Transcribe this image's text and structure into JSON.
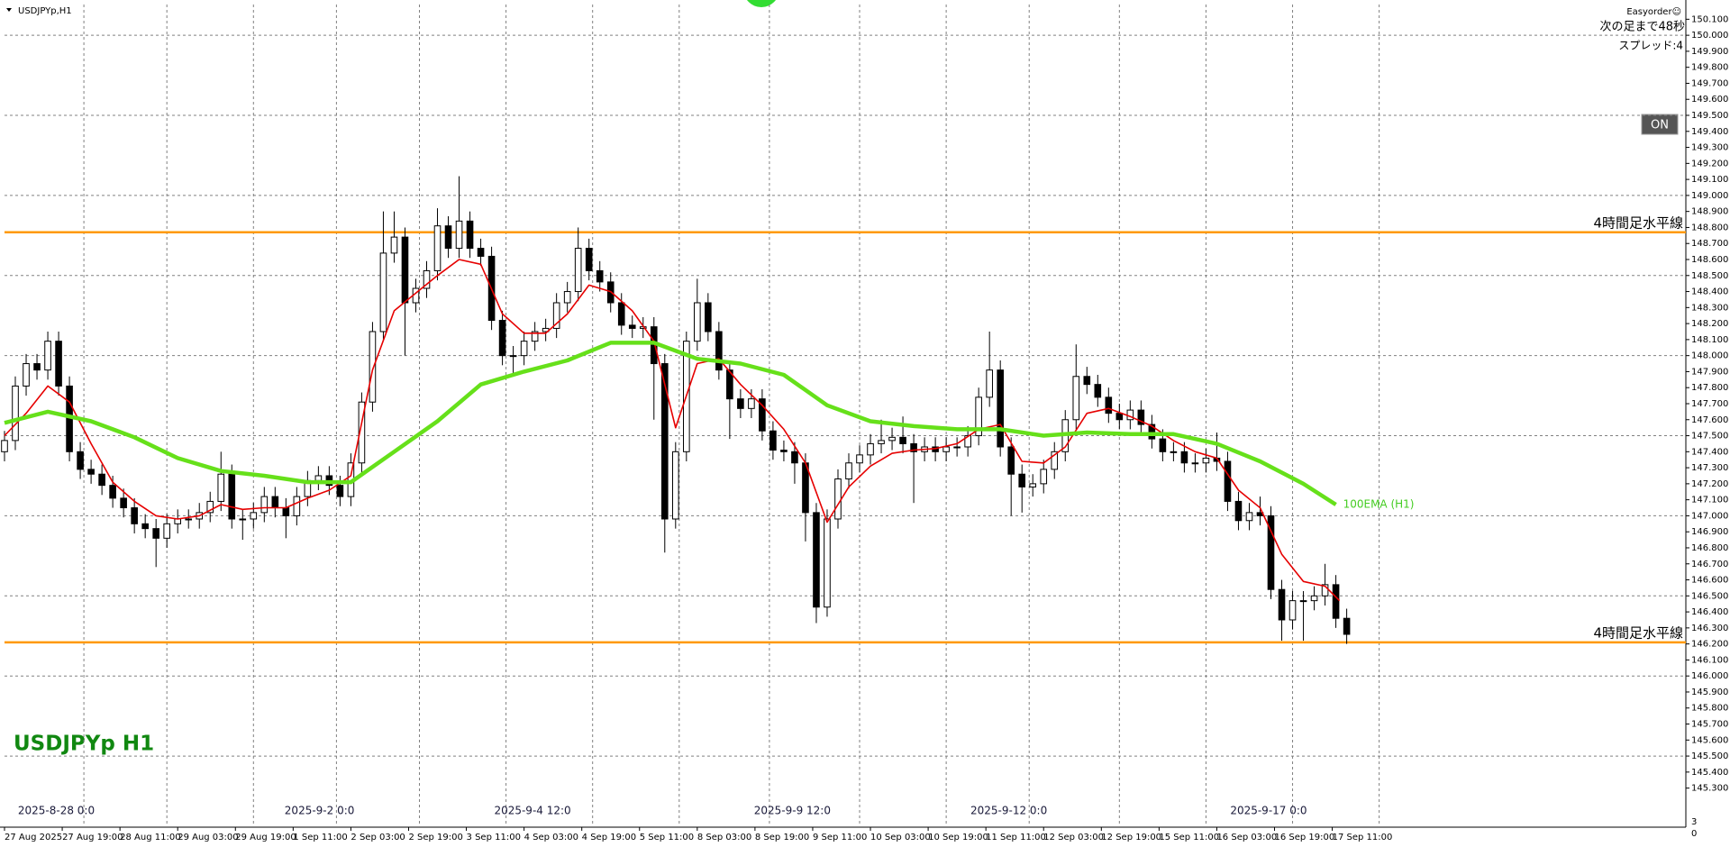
{
  "panel": {
    "easyorder": "Easyorder☺",
    "countdown": "次の足まで48秒",
    "spread": "スプレッド:4",
    "button": "ON",
    "scale_corner": [
      "3",
      "0"
    ]
  },
  "chart_data": {
    "type": "candlestick",
    "title": "USDJPYp,H1",
    "watermark": "USDJPYp H1",
    "xlim": [
      0,
      466
    ],
    "ylim": [
      145.056,
      150.192
    ],
    "grid": true,
    "up_color": "#ffffff",
    "down_color": "#000000",
    "x": [
      0,
      3,
      6,
      9,
      12,
      15,
      18,
      21,
      24,
      27,
      30,
      33,
      36,
      39,
      42,
      45,
      48,
      51,
      54,
      57,
      60,
      63,
      66,
      69,
      72,
      75,
      78,
      81,
      84,
      87,
      90,
      93,
      96,
      99,
      102,
      105,
      108,
      111,
      114,
      117,
      120,
      123,
      126,
      129,
      132,
      135,
      138,
      141,
      144,
      147,
      150,
      153,
      156,
      159,
      162,
      165,
      168,
      171,
      174,
      177,
      180,
      183,
      186,
      189,
      192,
      195,
      198,
      201,
      204,
      207,
      210,
      213,
      216,
      219,
      222,
      225,
      228,
      231,
      234,
      237,
      240,
      243,
      246,
      249,
      252,
      255,
      258,
      261,
      264,
      267,
      270,
      273,
      276,
      279,
      282,
      285,
      288,
      291,
      294,
      297,
      300,
      303,
      306,
      309,
      312,
      315,
      318,
      321,
      324,
      327,
      330,
      333,
      336,
      339,
      342,
      345,
      348,
      351,
      354,
      357,
      360,
      363,
      366,
      369,
      372
    ],
    "open": [
      147.4,
      147.47,
      147.81,
      147.95,
      147.91,
      148.09,
      147.81,
      147.4,
      147.29,
      147.26,
      147.19,
      147.11,
      147.05,
      146.95,
      146.92,
      146.86,
      146.95,
      146.98,
      146.98,
      147.02,
      147.09,
      147.26,
      146.98,
      146.98,
      147.02,
      147.12,
      147.05,
      147.0,
      147.12,
      147.22,
      147.25,
      147.19,
      147.12,
      147.33,
      147.71,
      148.15,
      148.64,
      148.74,
      148.33,
      148.42,
      148.53,
      148.81,
      148.67,
      148.84,
      148.67,
      148.62,
      148.22,
      148.0,
      148.0,
      148.09,
      148.15,
      148.17,
      148.33,
      148.4,
      148.67,
      148.53,
      148.46,
      148.33,
      148.19,
      148.17,
      148.18,
      147.95,
      146.98,
      147.4,
      148.09,
      148.33,
      148.15,
      147.91,
      147.73,
      147.67,
      147.73,
      147.53,
      147.41,
      147.4,
      147.33,
      147.02,
      146.43,
      146.98,
      147.23,
      147.33,
      147.38,
      147.45,
      147.47,
      147.49,
      147.45,
      147.4,
      147.43,
      147.4,
      147.43,
      147.43,
      147.5,
      147.74,
      147.91,
      147.43,
      147.26,
      147.18,
      147.2,
      147.29,
      147.4,
      147.6,
      147.87,
      147.82,
      147.74,
      147.64,
      147.6,
      147.66,
      147.57,
      147.48,
      147.4,
      147.4,
      147.33,
      147.33,
      147.36,
      147.34,
      147.09,
      146.97,
      147.02,
      147.0,
      146.54,
      146.35,
      146.47,
      146.47,
      146.5,
      146.57,
      146.36
    ],
    "high": [
      147.53,
      147.87,
      148.01,
      148.01,
      148.15,
      148.15,
      147.87,
      147.46,
      147.35,
      147.32,
      147.25,
      147.17,
      147.11,
      147.01,
      146.98,
      147.01,
      147.04,
      147.04,
      147.08,
      147.15,
      147.4,
      147.32,
      147.04,
      147.08,
      147.18,
      147.18,
      147.11,
      147.18,
      147.28,
      147.31,
      147.31,
      147.25,
      147.39,
      147.77,
      148.21,
      148.9,
      148.9,
      148.8,
      148.48,
      148.59,
      148.92,
      148.87,
      149.12,
      148.9,
      148.73,
      148.68,
      148.28,
      148.06,
      148.15,
      148.21,
      148.23,
      148.39,
      148.46,
      148.8,
      148.73,
      148.59,
      148.52,
      148.39,
      148.25,
      148.24,
      148.24,
      148.01,
      147.46,
      148.15,
      148.48,
      148.39,
      148.21,
      147.97,
      147.79,
      147.79,
      147.79,
      147.59,
      147.47,
      147.46,
      147.39,
      147.08,
      147.04,
      147.29,
      147.39,
      147.44,
      147.51,
      147.6,
      147.55,
      147.62,
      147.51,
      147.49,
      147.49,
      147.49,
      147.49,
      147.56,
      147.8,
      148.15,
      147.97,
      147.49,
      147.32,
      147.26,
      147.35,
      147.46,
      147.66,
      148.07,
      147.93,
      147.88,
      147.8,
      147.7,
      147.72,
      147.72,
      147.63,
      147.54,
      147.46,
      147.46,
      147.39,
      147.42,
      147.52,
      147.4,
      147.15,
      147.08,
      147.12,
      147.06,
      146.6,
      146.53,
      146.53,
      146.56,
      146.7,
      146.63,
      146.42
    ],
    "low": [
      147.34,
      147.41,
      147.75,
      147.85,
      147.85,
      147.75,
      147.34,
      147.23,
      147.2,
      147.13,
      147.05,
      146.99,
      146.89,
      146.86,
      146.68,
      146.8,
      146.89,
      146.92,
      146.92,
      146.96,
      147.03,
      146.92,
      146.85,
      146.92,
      146.96,
      146.99,
      146.86,
      146.94,
      147.06,
      147.16,
      147.13,
      147.06,
      147.06,
      147.27,
      147.65,
      148.09,
      148.58,
      148.0,
      148.27,
      148.36,
      148.47,
      148.61,
      148.61,
      148.61,
      148.56,
      148.16,
      147.94,
      147.88,
      147.94,
      148.03,
      148.09,
      148.11,
      148.27,
      148.34,
      148.47,
      148.4,
      148.27,
      148.13,
      148.11,
      148.11,
      147.6,
      146.77,
      146.92,
      147.34,
      148.03,
      148.09,
      147.85,
      147.48,
      147.61,
      147.61,
      147.47,
      147.35,
      147.34,
      147.2,
      146.84,
      146.33,
      146.37,
      146.92,
      147.17,
      147.27,
      147.32,
      147.39,
      147.41,
      147.39,
      147.08,
      147.34,
      147.34,
      147.34,
      147.37,
      147.37,
      147.44,
      147.68,
      147.37,
      147.0,
      147.02,
      147.12,
      147.14,
      147.23,
      147.34,
      147.54,
      147.76,
      147.68,
      147.58,
      147.54,
      147.54,
      147.51,
      147.42,
      147.34,
      147.34,
      147.27,
      147.27,
      147.27,
      147.28,
      147.03,
      146.91,
      146.91,
      146.94,
      146.48,
      146.22,
      146.29,
      146.22,
      146.41,
      146.44,
      146.3,
      146.2
    ],
    "close": [
      147.47,
      147.81,
      147.95,
      147.91,
      148.09,
      147.81,
      147.4,
      147.29,
      147.26,
      147.19,
      147.11,
      147.05,
      146.95,
      146.92,
      146.86,
      146.95,
      146.98,
      146.98,
      147.02,
      147.09,
      147.26,
      146.98,
      146.98,
      147.02,
      147.12,
      147.05,
      147.0,
      147.12,
      147.22,
      147.25,
      147.19,
      147.12,
      147.33,
      147.71,
      148.15,
      148.64,
      148.74,
      148.33,
      148.42,
      148.53,
      148.81,
      148.67,
      148.84,
      148.67,
      148.62,
      148.22,
      148.0,
      148.0,
      148.09,
      148.15,
      148.17,
      148.33,
      148.4,
      148.67,
      148.53,
      148.46,
      148.33,
      148.19,
      148.17,
      148.18,
      147.95,
      146.98,
      147.4,
      148.09,
      148.33,
      148.15,
      147.91,
      147.73,
      147.67,
      147.73,
      147.53,
      147.41,
      147.4,
      147.33,
      147.02,
      146.43,
      146.98,
      147.23,
      147.33,
      147.38,
      147.45,
      147.47,
      147.49,
      147.45,
      147.4,
      147.43,
      147.4,
      147.43,
      147.43,
      147.5,
      147.74,
      147.91,
      147.43,
      147.26,
      147.18,
      147.2,
      147.29,
      147.4,
      147.6,
      147.87,
      147.82,
      147.74,
      147.64,
      147.6,
      147.66,
      147.57,
      147.48,
      147.4,
      147.4,
      147.33,
      147.33,
      147.36,
      147.34,
      147.09,
      146.97,
      147.02,
      147.0,
      146.54,
      146.35,
      146.47,
      146.47,
      146.5,
      146.57,
      146.36,
      146.26
    ],
    "overlays": [
      {
        "color": "#e60000",
        "x": [
          0,
          6,
          12,
          18,
          24,
          30,
          36,
          42,
          48,
          54,
          60,
          66,
          72,
          78,
          84,
          90,
          96,
          102,
          108,
          114,
          120,
          126,
          132,
          138,
          144,
          150,
          156,
          162,
          168,
          174,
          180,
          186,
          192,
          198,
          204,
          210,
          216,
          222,
          228,
          234,
          240,
          246,
          252,
          258,
          264,
          270,
          276,
          282,
          288,
          294,
          300,
          306,
          312,
          318,
          324,
          330,
          336,
          342,
          348,
          354,
          360,
          366,
          370
        ],
        "values": [
          147.5,
          147.64,
          147.81,
          147.71,
          147.45,
          147.21,
          147.09,
          147.0,
          146.98,
          147.0,
          147.07,
          147.04,
          147.05,
          147.05,
          147.11,
          147.16,
          147.25,
          147.91,
          148.28,
          148.39,
          148.5,
          148.6,
          148.57,
          148.26,
          148.14,
          148.14,
          148.26,
          148.44,
          148.4,
          148.28,
          148.09,
          147.55,
          147.95,
          147.98,
          147.82,
          147.69,
          147.54,
          147.33,
          146.96,
          147.18,
          147.31,
          147.39,
          147.41,
          147.42,
          147.45,
          147.54,
          147.57,
          147.34,
          147.33,
          147.43,
          147.64,
          147.67,
          147.62,
          147.56,
          147.47,
          147.4,
          147.36,
          147.16,
          147.05,
          146.76,
          146.59,
          146.56,
          146.47
        ]
      },
      {
        "name": "100EMA (H1)",
        "color": "#66e01a",
        "x": [
          0,
          12,
          24,
          36,
          48,
          60,
          72,
          84,
          96,
          108,
          120,
          132,
          144,
          156,
          168,
          180,
          192,
          204,
          216,
          228,
          240,
          252,
          264,
          276,
          288,
          300,
          312,
          324,
          336,
          348,
          360,
          369
        ],
        "values": [
          147.58,
          147.65,
          147.59,
          147.49,
          147.36,
          147.28,
          147.25,
          147.21,
          147.21,
          147.4,
          147.59,
          147.82,
          147.9,
          147.97,
          148.08,
          148.08,
          147.98,
          147.95,
          147.88,
          147.69,
          147.59,
          147.56,
          147.54,
          147.54,
          147.5,
          147.52,
          147.51,
          147.51,
          147.45,
          147.34,
          147.2,
          147.07
        ]
      }
    ],
    "hlines": [
      {
        "value": 148.77,
        "label": "4時間足水平線",
        "color": "#ff9900"
      },
      {
        "value": 146.21,
        "label": "4時間足水平線",
        "color": "#ff9900"
      }
    ],
    "date_markers": [
      {
        "x": 25,
        "label": "2025-8-28 0:0"
      },
      {
        "x": 97,
        "label": "2025-9-2 0:0"
      },
      {
        "x": 157,
        "label": "2025-9-4 12:0"
      },
      {
        "x": 229,
        "label": "2025-9-9 12:0"
      },
      {
        "x": 289,
        "label": "2025-9-12 0:0"
      },
      {
        "x": 361,
        "label": "2025-9-17 0:0"
      }
    ],
    "xticks": [
      {
        "value": 0,
        "label": "27 Aug 2025"
      },
      {
        "value": 16,
        "label": "27 Aug 19:00"
      },
      {
        "value": 32,
        "label": "28 Aug 11:00"
      },
      {
        "value": 48,
        "label": "29 Aug 03:00"
      },
      {
        "value": 64,
        "label": "29 Aug 19:00"
      },
      {
        "value": 80,
        "label": "1 Sep 11:00"
      },
      {
        "value": 96,
        "label": "2 Sep 03:00"
      },
      {
        "value": 112,
        "label": "2 Sep 19:00"
      },
      {
        "value": 128,
        "label": "3 Sep 11:00"
      },
      {
        "value": 144,
        "label": "4 Sep 03:00"
      },
      {
        "value": 160,
        "label": "4 Sep 19:00"
      },
      {
        "value": 176,
        "label": "5 Sep 11:00"
      },
      {
        "value": 192,
        "label": "8 Sep 03:00"
      },
      {
        "value": 208,
        "label": "8 Sep 19:00"
      },
      {
        "value": 224,
        "label": "9 Sep 11:00"
      },
      {
        "value": 240,
        "label": "10 Sep 03:00"
      },
      {
        "value": 256,
        "label": "10 Sep 19:00"
      },
      {
        "value": 272,
        "label": "11 Sep 11:00"
      },
      {
        "value": 288,
        "label": "12 Sep 03:00"
      },
      {
        "value": 304,
        "label": "12 Sep 19:00"
      },
      {
        "value": 320,
        "label": "15 Sep 11:00"
      },
      {
        "value": 336,
        "label": "16 Sep 03:00"
      },
      {
        "value": 352,
        "label": "16 Sep 19:00"
      },
      {
        "value": 368,
        "label": "17 Sep 11:00"
      }
    ],
    "xgrid": [
      22,
      45,
      69,
      92,
      115,
      139,
      163,
      187,
      212,
      237,
      261,
      284,
      309,
      333,
      357,
      381
    ],
    "ygrid": [
      150.0,
      149.5,
      149.0,
      148.5,
      148.0,
      147.5,
      147.0,
      146.5,
      146.0,
      145.5
    ],
    "yticks": [
      {
        "value": 150.1,
        "label": "150.100"
      },
      {
        "value": 150.0,
        "label": "150.000"
      },
      {
        "value": 149.9,
        "label": "149.900"
      },
      {
        "value": 149.8,
        "label": "149.800"
      },
      {
        "value": 149.7,
        "label": "149.700"
      },
      {
        "value": 149.6,
        "label": "149.600"
      },
      {
        "value": 149.5,
        "label": "149.500"
      },
      {
        "value": 149.4,
        "label": "149.400"
      },
      {
        "value": 149.3,
        "label": "149.300"
      },
      {
        "value": 149.2,
        "label": "149.200"
      },
      {
        "value": 149.1,
        "label": "149.100"
      },
      {
        "value": 149.0,
        "label": "149.000"
      },
      {
        "value": 148.9,
        "label": "148.900"
      },
      {
        "value": 148.8,
        "label": "148.800"
      },
      {
        "value": 148.7,
        "label": "148.700"
      },
      {
        "value": 148.6,
        "label": "148.600"
      },
      {
        "value": 148.5,
        "label": "148.500"
      },
      {
        "value": 148.4,
        "label": "148.400"
      },
      {
        "value": 148.3,
        "label": "148.300"
      },
      {
        "value": 148.2,
        "label": "148.200"
      },
      {
        "value": 148.1,
        "label": "148.100"
      },
      {
        "value": 148.0,
        "label": "148.000"
      },
      {
        "value": 147.9,
        "label": "147.900"
      },
      {
        "value": 147.8,
        "label": "147.800"
      },
      {
        "value": 147.7,
        "label": "147.700"
      },
      {
        "value": 147.6,
        "label": "147.600"
      },
      {
        "value": 147.5,
        "label": "147.500"
      },
      {
        "value": 147.4,
        "label": "147.400"
      },
      {
        "value": 147.3,
        "label": "147.300"
      },
      {
        "value": 147.2,
        "label": "147.200"
      },
      {
        "value": 147.1,
        "label": "147.100"
      },
      {
        "value": 147.0,
        "label": "147.000"
      },
      {
        "value": 146.9,
        "label": "146.900"
      },
      {
        "value": 146.8,
        "label": "146.800"
      },
      {
        "value": 146.7,
        "label": "146.700"
      },
      {
        "value": 146.6,
        "label": "146.600"
      },
      {
        "value": 146.5,
        "label": "146.500"
      },
      {
        "value": 146.4,
        "label": "146.400"
      },
      {
        "value": 146.3,
        "label": "146.300"
      },
      {
        "value": 146.2,
        "label": "146.200"
      },
      {
        "value": 146.1,
        "label": "146.100"
      },
      {
        "value": 146.0,
        "label": "146.000"
      },
      {
        "value": 145.9,
        "label": "145.900"
      },
      {
        "value": 145.8,
        "label": "145.800"
      },
      {
        "value": 145.7,
        "label": "145.700"
      },
      {
        "value": 145.6,
        "label": "145.600"
      },
      {
        "value": 145.5,
        "label": "145.500"
      },
      {
        "value": 145.4,
        "label": "145.400"
      },
      {
        "value": 145.3,
        "label": "145.300"
      }
    ]
  }
}
